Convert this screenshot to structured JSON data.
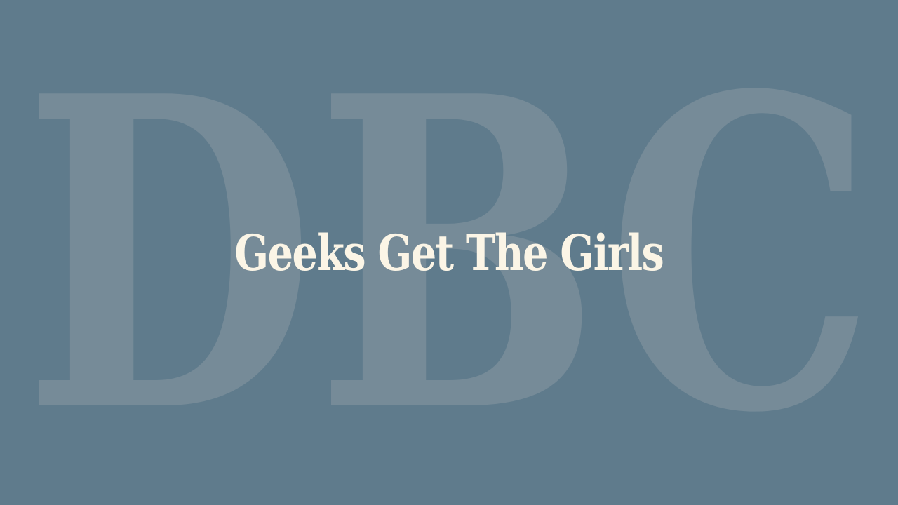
{
  "background": {
    "color": "#5f7b8c",
    "watermark_letters": "DBC",
    "watermark_color": "#768b98"
  },
  "title": {
    "text": "Geeks Get The Girls",
    "color": "#fbf5e6"
  }
}
